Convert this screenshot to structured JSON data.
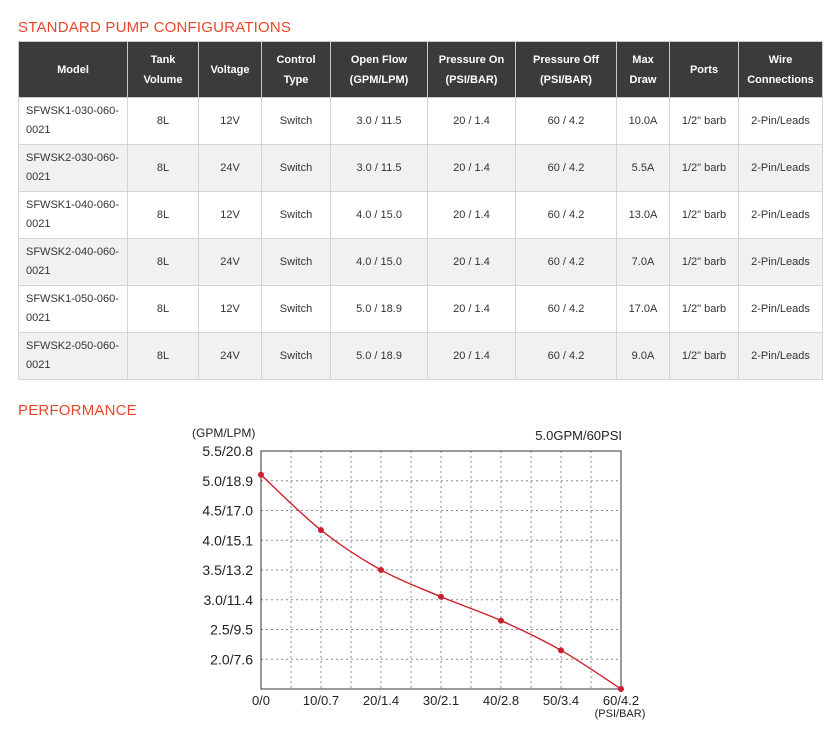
{
  "sections": {
    "configurations_title": "STANDARD PUMP CONFIGURATIONS",
    "performance_title": "PERFORMANCE"
  },
  "table": {
    "headers": [
      [
        "Model"
      ],
      [
        "Tank",
        "Volume"
      ],
      [
        "Voltage"
      ],
      [
        "Control",
        "Type"
      ],
      [
        "Open Flow",
        "(GPM/LPM)"
      ],
      [
        "Pressure On",
        "(PSI/BAR)"
      ],
      [
        "Pressure Off",
        "(PSI/BAR)"
      ],
      [
        "Max",
        "Draw"
      ],
      [
        "Ports"
      ],
      [
        "Wire",
        "Connections"
      ]
    ],
    "rows": [
      [
        [
          "SFWSK1-030-060-",
          "0021"
        ],
        "8L",
        "12V",
        "Switch",
        "3.0 / 11.5",
        "20 / 1.4",
        "60 / 4.2",
        "10.0A",
        "1/2\" barb",
        "2-Pin/Leads"
      ],
      [
        [
          "SFWSK2-030-060-",
          "0021"
        ],
        "8L",
        "24V",
        "Switch",
        "3.0 / 11.5",
        "20 / 1.4",
        "60 / 4.2",
        "5.5A",
        "1/2\" barb",
        "2-Pin/Leads"
      ],
      [
        [
          "SFWSK1-040-060-",
          "0021"
        ],
        "8L",
        "12V",
        "Switch",
        "4.0 / 15.0",
        "20 / 1.4",
        "60 / 4.2",
        "13.0A",
        "1/2\" barb",
        "2-Pin/Leads"
      ],
      [
        [
          "SFWSK2-040-060-",
          "0021"
        ],
        "8L",
        "24V",
        "Switch",
        "4.0 / 15.0",
        "20 / 1.4",
        "60 / 4.2",
        "7.0A",
        "1/2\" barb",
        "2-Pin/Leads"
      ],
      [
        [
          "SFWSK1-050-060-",
          "0021"
        ],
        "8L",
        "12V",
        "Switch",
        "5.0 / 18.9",
        "20 / 1.4",
        "60 / 4.2",
        "17.0A",
        "1/2\" barb",
        "2-Pin/Leads"
      ],
      [
        [
          "SFWSK2-050-060-",
          "0021"
        ],
        "8L",
        "24V",
        "Switch",
        "5.0 / 18.9",
        "20 / 1.4",
        "60 / 4.2",
        "9.0A",
        "1/2\" barb",
        "2-Pin/Leads"
      ]
    ]
  },
  "chart_data": {
    "type": "line",
    "title": "5.0GPM/60PSI",
    "ylabel": "(GPM/LPM)",
    "xlabel": "(PSI/BAR)",
    "x_tick_labels": [
      "0/0",
      "10/0.7",
      "20/1.4",
      "30/2.1",
      "40/2.8",
      "50/3.4",
      "60/4.2"
    ],
    "y_tick_labels": [
      "2.0/7.6",
      "2.5/9.5",
      "3.0/11.4",
      "3.5/13.2",
      "4.0/15.1",
      "4.5/17.0",
      "5.0/18.9",
      "5.5/20.8"
    ],
    "x_ticks": [
      0,
      10,
      20,
      30,
      40,
      50,
      60
    ],
    "y_ticks": [
      2.0,
      2.5,
      3.0,
      3.5,
      4.0,
      4.5,
      5.0,
      5.5
    ],
    "xlim": [
      0,
      60
    ],
    "ylim": [
      1.5,
      5.5
    ],
    "grid": true,
    "series": [
      {
        "color": "#cc1f2d",
        "x": [
          0,
          10,
          20,
          30,
          40,
          50,
          60
        ],
        "y": [
          5.1,
          4.17,
          3.5,
          3.05,
          2.65,
          2.15,
          1.5
        ]
      }
    ]
  }
}
